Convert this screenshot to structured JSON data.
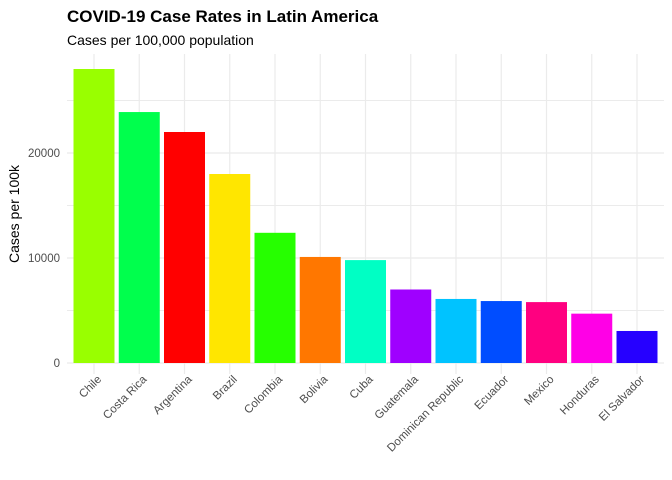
{
  "chart_data": {
    "type": "bar",
    "title": "COVID-19 Case Rates in Latin America",
    "subtitle": "Cases per 100,000 population",
    "xlabel": "",
    "ylabel": "Cases per 100k",
    "ylim": [
      0,
      29000
    ],
    "yticks": [
      0,
      10000,
      20000
    ],
    "ytick_labels": [
      "0",
      "10000",
      "20000"
    ],
    "minor_yticks": [
      5000,
      15000,
      25000
    ],
    "grid": true,
    "legend": "none",
    "categories": [
      "Chile",
      "Costa Rica",
      "Argentina",
      "Brazil",
      "Colombia",
      "Bolivia",
      "Cuba",
      "Guatemala",
      "Dominican Republic",
      "Ecuador",
      "Mexico",
      "Honduras",
      "El Salvador"
    ],
    "values": [
      28000,
      23900,
      22000,
      18000,
      12400,
      10100,
      9800,
      7000,
      6100,
      5900,
      5800,
      4700,
      3050
    ],
    "colors": [
      "#99ff00",
      "#00ff4d",
      "#ff0000",
      "#ffe600",
      "#26ff00",
      "#ff7700",
      "#00ffc4",
      "#9f00ff",
      "#00c3ff",
      "#004dff",
      "#ff0080",
      "#ff00e6",
      "#2600ff"
    ]
  }
}
